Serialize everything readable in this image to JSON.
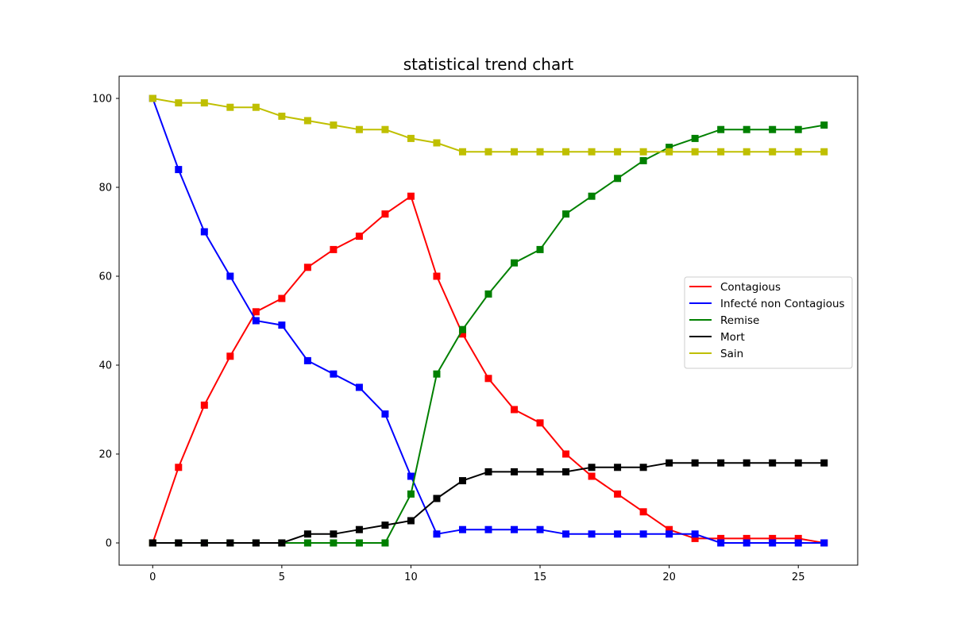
{
  "chart_data": {
    "type": "line",
    "title": "statistical trend chart",
    "xlabel": "",
    "ylabel": "",
    "x": [
      0,
      1,
      2,
      3,
      4,
      5,
      6,
      7,
      8,
      9,
      10,
      11,
      12,
      13,
      14,
      15,
      16,
      17,
      18,
      19,
      20,
      21,
      22,
      23,
      24,
      25,
      26
    ],
    "xlim": [
      -1.3,
      27.3
    ],
    "ylim": [
      -5,
      105
    ],
    "x_ticks": [
      0,
      5,
      10,
      15,
      20,
      25
    ],
    "y_ticks": [
      0,
      20,
      40,
      60,
      80,
      100
    ],
    "grid": false,
    "legend_position": "center-right",
    "marker": "square",
    "series": [
      {
        "name": "Contagious",
        "color": "#ff0000",
        "values": [
          0,
          17,
          31,
          42,
          52,
          55,
          62,
          66,
          69,
          74,
          78,
          60,
          47,
          37,
          30,
          27,
          20,
          15,
          11,
          7,
          3,
          1,
          1,
          1,
          1,
          1,
          0
        ]
      },
      {
        "name": "Infecté non Contagious",
        "color": "#0000ff",
        "values": [
          100,
          84,
          70,
          60,
          50,
          49,
          41,
          38,
          35,
          29,
          15,
          2,
          3,
          3,
          3,
          3,
          2,
          2,
          2,
          2,
          2,
          2,
          0,
          0,
          0,
          0,
          0
        ]
      },
      {
        "name": "Remise",
        "color": "#008000",
        "values": [
          0,
          0,
          0,
          0,
          0,
          0,
          0,
          0,
          0,
          0,
          11,
          38,
          48,
          56,
          63,
          66,
          74,
          78,
          82,
          86,
          89,
          91,
          93,
          93,
          93,
          93,
          94
        ]
      },
      {
        "name": "Mort",
        "color": "#000000",
        "values": [
          0,
          0,
          0,
          0,
          0,
          0,
          2,
          2,
          3,
          4,
          5,
          10,
          14,
          16,
          16,
          16,
          16,
          17,
          17,
          17,
          18,
          18,
          18,
          18,
          18,
          18,
          18
        ]
      },
      {
        "name": "Sain",
        "color": "#bfbf00",
        "values": [
          100,
          99,
          99,
          98,
          98,
          96,
          95,
          94,
          93,
          93,
          91,
          90,
          88,
          88,
          88,
          88,
          88,
          88,
          88,
          88,
          88,
          88,
          88,
          88,
          88,
          88,
          88
        ]
      }
    ]
  }
}
